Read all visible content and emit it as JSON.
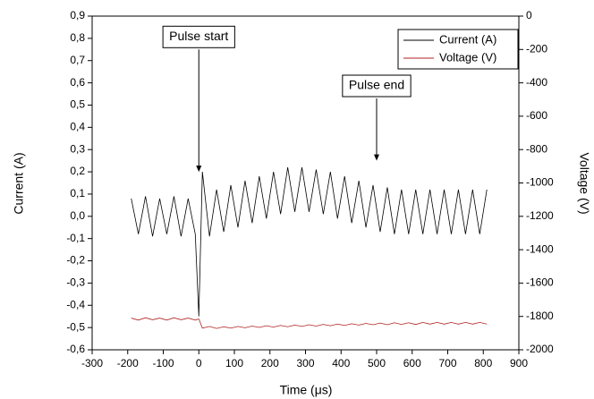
{
  "chart_data": {
    "type": "line",
    "x_label": "Time (μs)",
    "y_label": "Current (A)",
    "y2_label": "Voltage (V)",
    "x": [
      -190,
      -170,
      -150,
      -130,
      -110,
      -90,
      -70,
      -50,
      -30,
      -10,
      0,
      10,
      30,
      50,
      70,
      90,
      110,
      130,
      150,
      170,
      190,
      210,
      230,
      250,
      270,
      290,
      310,
      330,
      350,
      370,
      390,
      410,
      430,
      450,
      470,
      490,
      510,
      530,
      550,
      570,
      590,
      610,
      630,
      650,
      670,
      690,
      710,
      730,
      750,
      770,
      790,
      810
    ],
    "series": [
      {
        "name": "Current (A)",
        "color": "#000000",
        "axis": "y",
        "values": [
          0.08,
          -0.08,
          0.09,
          -0.09,
          0.08,
          -0.08,
          0.09,
          -0.09,
          0.08,
          -0.08,
          -0.45,
          0.2,
          -0.09,
          0.12,
          -0.07,
          0.14,
          -0.05,
          0.16,
          -0.03,
          0.18,
          -0.01,
          0.2,
          0.01,
          0.22,
          0.02,
          0.22,
          0.02,
          0.21,
          0.01,
          0.2,
          -0.01,
          0.18,
          -0.03,
          0.16,
          -0.05,
          0.14,
          -0.07,
          0.13,
          -0.08,
          0.12,
          -0.08,
          0.12,
          -0.08,
          0.12,
          -0.08,
          0.12,
          -0.08,
          0.12,
          -0.08,
          0.12,
          -0.08,
          0.12
        ]
      },
      {
        "name": "Voltage (V)",
        "color": "#b22222",
        "axis": "y2",
        "values": [
          -1810,
          -1822,
          -1808,
          -1820,
          -1810,
          -1822,
          -1808,
          -1820,
          -1810,
          -1822,
          -1815,
          -1870,
          -1860,
          -1872,
          -1862,
          -1870,
          -1860,
          -1868,
          -1858,
          -1866,
          -1856,
          -1864,
          -1854,
          -1862,
          -1852,
          -1860,
          -1850,
          -1858,
          -1848,
          -1856,
          -1846,
          -1854,
          -1844,
          -1852,
          -1842,
          -1850,
          -1840,
          -1850,
          -1838,
          -1848,
          -1838,
          -1848,
          -1836,
          -1846,
          -1836,
          -1846,
          -1836,
          -1846,
          -1836,
          -1846,
          -1836,
          -1846
        ]
      }
    ],
    "xlim": [
      -300,
      900
    ],
    "xticks": [
      -300,
      -200,
      -100,
      0,
      100,
      200,
      300,
      400,
      500,
      600,
      700,
      800,
      900
    ],
    "ylim": [
      -0.6,
      0.9
    ],
    "yticks": [
      {
        "value": -0.6,
        "label": "-0,6"
      },
      {
        "value": -0.5,
        "label": "-0,5"
      },
      {
        "value": -0.4,
        "label": "-0,4"
      },
      {
        "value": -0.3,
        "label": "-0,3"
      },
      {
        "value": -0.2,
        "label": "-0,2"
      },
      {
        "value": -0.1,
        "label": "-0,1"
      },
      {
        "value": 0,
        "label": "0,0"
      },
      {
        "value": 0.1,
        "label": "0,1"
      },
      {
        "value": 0.2,
        "label": "0,2"
      },
      {
        "value": 0.3,
        "label": "0,3"
      },
      {
        "value": 0.4,
        "label": "0,4"
      },
      {
        "value": 0.5,
        "label": "0,5"
      },
      {
        "value": 0.6,
        "label": "0,6"
      },
      {
        "value": 0.7,
        "label": "0,7"
      },
      {
        "value": 0.8,
        "label": "0,8"
      },
      {
        "value": 0.9,
        "label": "0,9"
      }
    ],
    "y2lim": [
      -2000,
      0
    ],
    "y2ticks": [
      -2000,
      -1800,
      -1600,
      -1400,
      -1200,
      -1000,
      -800,
      -600,
      -400,
      -200,
      0
    ],
    "legend": "top-right",
    "annotations": [
      {
        "text": "Pulse start",
        "x": 0,
        "y_from": 0.75,
        "y": 0.2
      },
      {
        "text": "Pulse end",
        "x": 500,
        "y_from": 0.53,
        "y": 0.25
      }
    ]
  }
}
